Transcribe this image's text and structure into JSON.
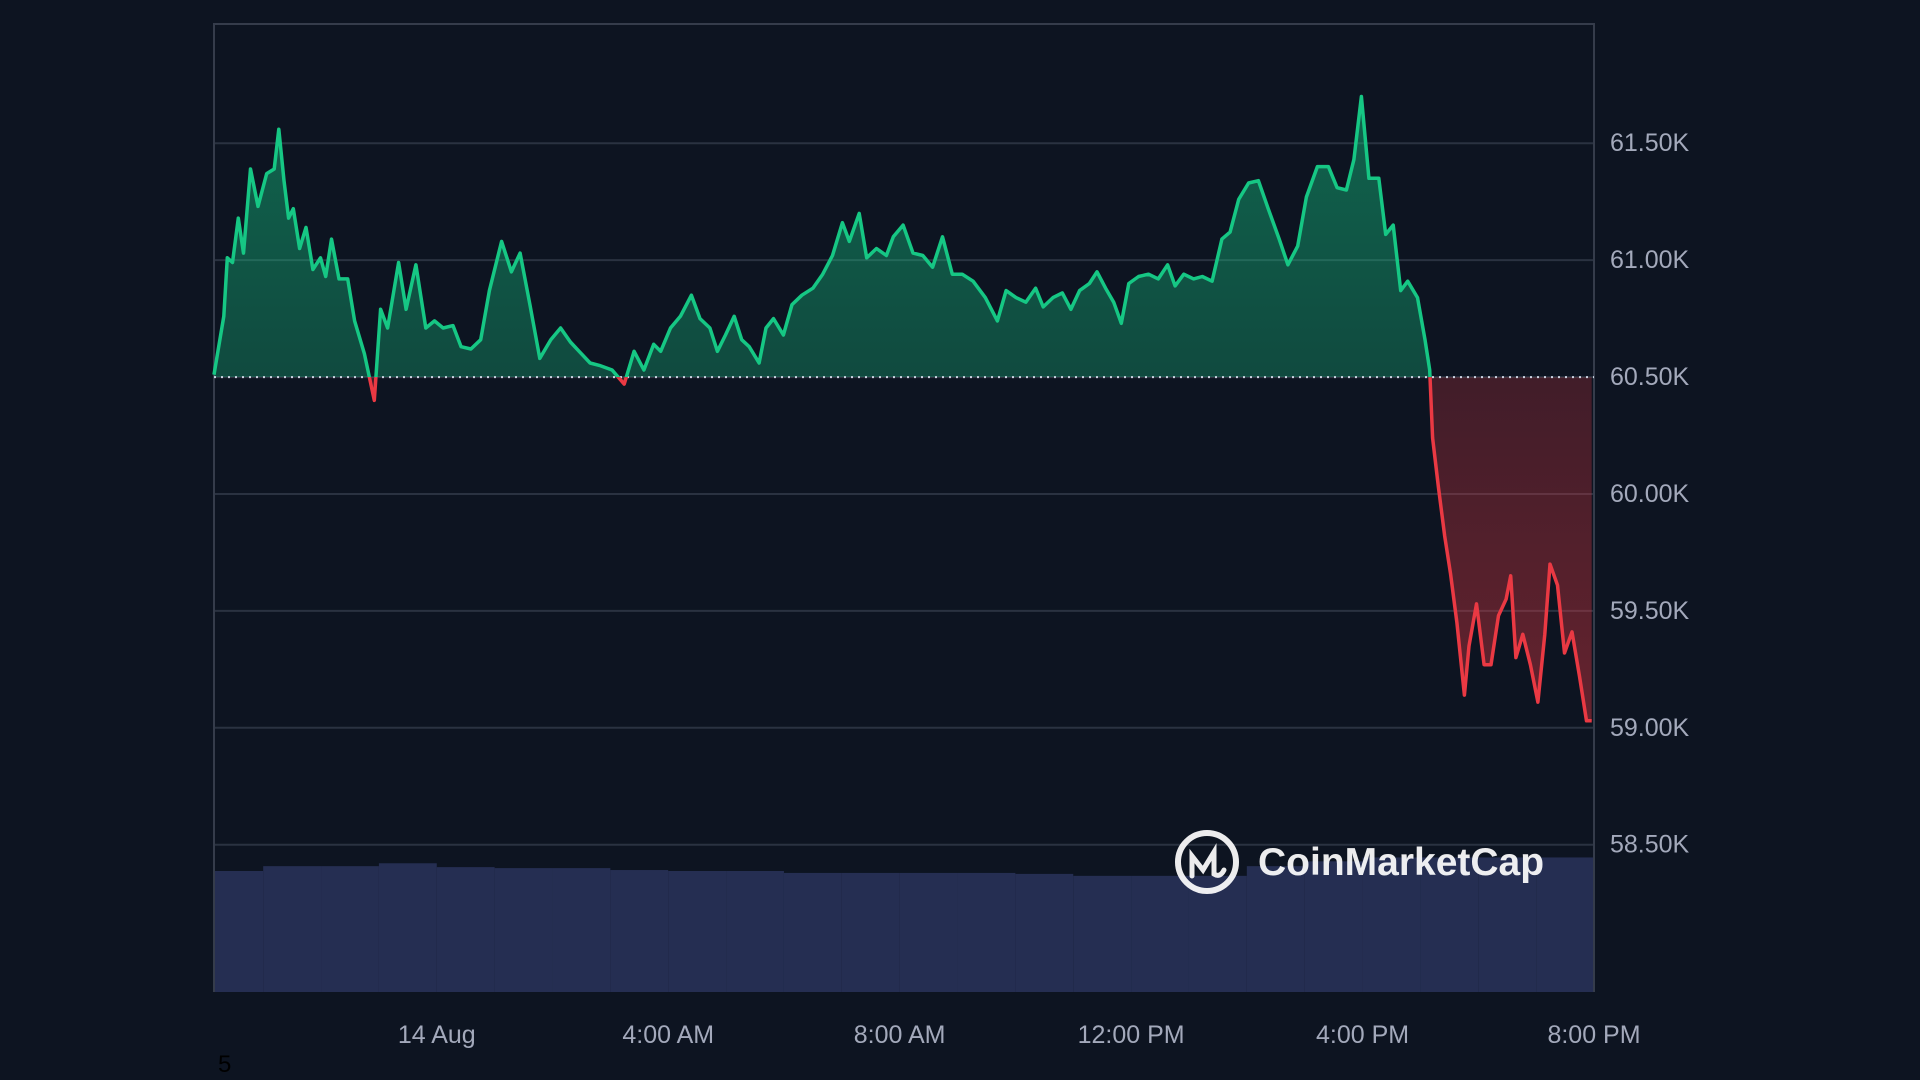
{
  "chart_data": {
    "type": "line",
    "color": "#16c784",
    "down_color": "#ea3943",
    "baseline": 60500,
    "xlim": [
      -3.85,
      20
    ],
    "xticks": [
      {
        "value": 0,
        "label": "14 Aug"
      },
      {
        "value": 4,
        "label": "4:00 AM"
      },
      {
        "value": 8,
        "label": "8:00 AM"
      },
      {
        "value": 12,
        "label": "12:00 PM"
      },
      {
        "value": 16,
        "label": "4:00 PM"
      },
      {
        "value": 20,
        "label": "8:00 PM"
      }
    ],
    "ylim": [
      57870,
      62010
    ],
    "yticks": [
      {
        "value": 58500,
        "label": "58.50K"
      },
      {
        "value": 59000,
        "label": "59.00K"
      },
      {
        "value": 59500,
        "label": "59.50K"
      },
      {
        "value": 60000,
        "label": "60.00K"
      },
      {
        "value": 60500,
        "label": "60.50K"
      },
      {
        "value": 61000,
        "label": "61.00K"
      },
      {
        "value": 61500,
        "label": "61.50K"
      }
    ],
    "grid": true,
    "x": [
      -3.85,
      -3.68,
      -3.62,
      -3.53,
      -3.43,
      -3.34,
      -3.22,
      -3.09,
      -2.94,
      -2.81,
      -2.73,
      -2.64,
      -2.56,
      -2.48,
      -2.37,
      -2.26,
      -2.14,
      -2.01,
      -1.92,
      -1.82,
      -1.69,
      -1.54,
      -1.42,
      -1.25,
      -1.08,
      -0.97,
      -0.85,
      -0.66,
      -0.53,
      -0.36,
      -0.19,
      -0.04,
      0.11,
      0.28,
      0.42,
      0.59,
      0.76,
      0.91,
      1.12,
      1.29,
      1.44,
      1.61,
      1.78,
      1.97,
      2.14,
      2.31,
      2.46,
      2.65,
      2.81,
      3.03,
      3.24,
      3.41,
      3.58,
      3.75,
      3.87,
      4.04,
      4.21,
      4.4,
      4.55,
      4.72,
      4.85,
      4.99,
      5.14,
      5.27,
      5.4,
      5.57,
      5.69,
      5.82,
      5.99,
      6.14,
      6.31,
      6.5,
      6.67,
      6.84,
      7.01,
      7.13,
      7.3,
      7.43,
      7.6,
      7.77,
      7.89,
      8.06,
      8.23,
      8.4,
      8.57,
      8.74,
      8.91,
      9.08,
      9.27,
      9.48,
      9.69,
      9.84,
      10.01,
      10.18,
      10.35,
      10.48,
      10.65,
      10.81,
      10.96,
      11.11,
      11.28,
      11.41,
      11.56,
      11.7,
      11.83,
      11.96,
      12.13,
      12.3,
      12.47,
      12.63,
      12.76,
      12.91,
      13.08,
      13.23,
      13.4,
      13.57,
      13.71,
      13.86,
      14.03,
      14.2,
      14.37,
      14.56,
      14.71,
      14.88,
      15.03,
      15.22,
      15.41,
      15.56,
      15.72,
      15.85,
      15.98,
      16.11,
      16.28,
      16.4,
      16.53,
      16.66,
      16.78,
      16.95,
      17.08,
      17.16,
      17.21,
      17.31,
      17.42,
      17.52,
      17.63,
      17.76,
      17.84,
      17.97,
      18.1,
      18.22,
      18.35,
      18.48,
      18.56,
      18.65,
      18.77,
      18.9,
      19.03,
      19.15,
      19.24,
      19.37,
      19.49,
      19.62,
      19.75,
      19.87,
      19.96
    ],
    "values": [
      60510,
      60760,
      61010,
      60990,
      61180,
      61030,
      61390,
      61230,
      61370,
      61390,
      61560,
      61340,
      61180,
      61220,
      61050,
      61140,
      60960,
      61010,
      60930,
      61090,
      60920,
      60920,
      60740,
      60600,
      60400,
      60790,
      60710,
      60990,
      60790,
      60980,
      60710,
      60740,
      60710,
      60720,
      60630,
      60620,
      60660,
      60870,
      61080,
      60950,
      61030,
      60810,
      60580,
      60660,
      60710,
      60650,
      60610,
      60560,
      60550,
      60530,
      60470,
      60610,
      60530,
      60640,
      60610,
      60710,
      60760,
      60850,
      60750,
      60710,
      60610,
      60680,
      60760,
      60660,
      60630,
      60560,
      60710,
      60750,
      60680,
      60810,
      60850,
      60880,
      60940,
      61020,
      61160,
      61080,
      61200,
      61010,
      61050,
      61020,
      61100,
      61150,
      61030,
      61020,
      60970,
      61100,
      60940,
      60940,
      60910,
      60840,
      60740,
      60870,
      60840,
      60820,
      60880,
      60800,
      60840,
      60860,
      60790,
      60870,
      60900,
      60950,
      60880,
      60820,
      60730,
      60900,
      60930,
      60940,
      60920,
      60980,
      60890,
      60940,
      60920,
      60930,
      60910,
      61090,
      61120,
      61260,
      61330,
      61340,
      61220,
      61090,
      60980,
      61060,
      61270,
      61400,
      61400,
      61310,
      61300,
      61430,
      61700,
      61350,
      61350,
      61110,
      61150,
      60870,
      60910,
      60840,
      60660,
      60530,
      60240,
      60030,
      59820,
      59660,
      59450,
      59140,
      59350,
      59530,
      59270,
      59270,
      59480,
      59550,
      59650,
      59300,
      59400,
      59270,
      59110,
      59400,
      59700,
      59610,
      59320,
      59410,
      59220,
      59030,
      59030
    ],
    "volume": {
      "color": "#252e52",
      "ylim": [
        0,
        100
      ],
      "x": [
        -3.5,
        -2.5,
        -1.5,
        -0.5,
        0.5,
        1.5,
        2.5,
        3.5,
        4.5,
        5.5,
        6.5,
        7.5,
        8.5,
        9.5,
        10.5,
        11.5,
        12.5,
        13.5,
        14.5,
        15.5,
        16.5,
        17.5,
        18.5,
        19.5
      ],
      "values": [
        12.5,
        13.0,
        13.0,
        13.3,
        12.9,
        12.8,
        12.8,
        12.6,
        12.5,
        12.5,
        12.3,
        12.3,
        12.3,
        12.3,
        12.2,
        12.0,
        12.0,
        12.0,
        13.0,
        13.5,
        13.9,
        13.9,
        13.9,
        13.9
      ]
    },
    "watermark": "CoinMarketCap",
    "footnote": "5"
  }
}
